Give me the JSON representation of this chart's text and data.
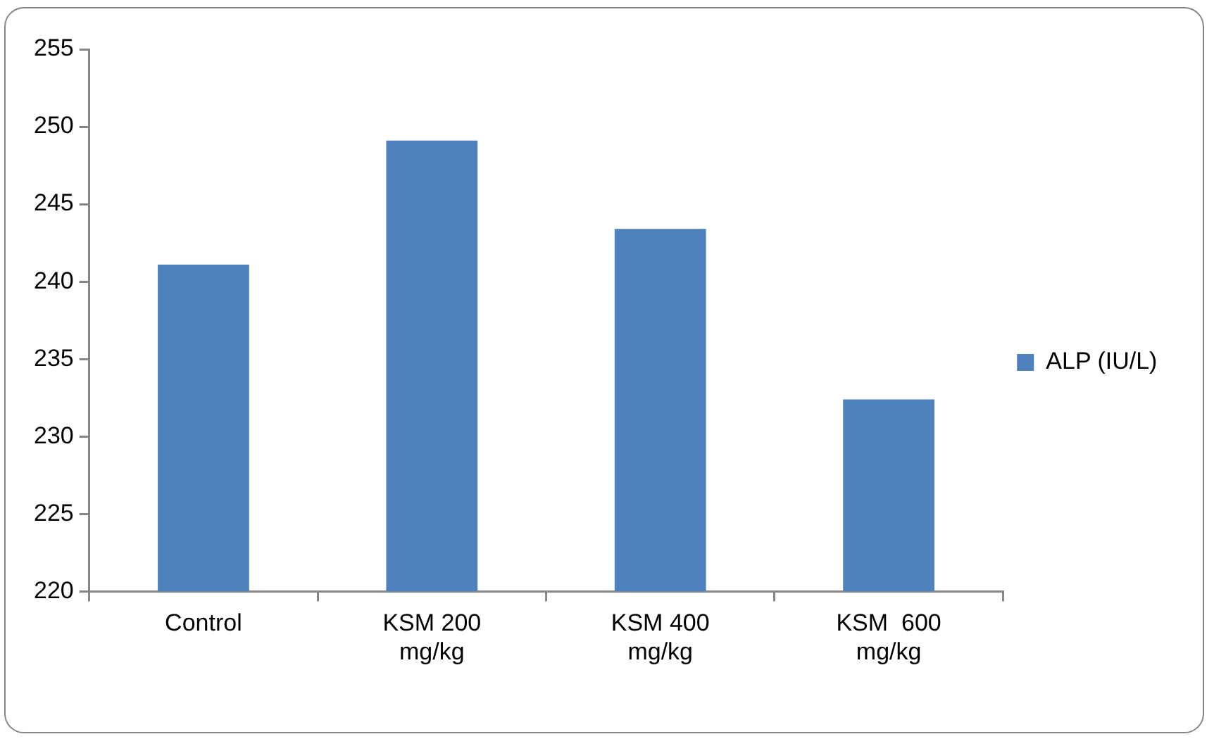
{
  "chart_data": {
    "type": "bar",
    "categories": [
      "Control",
      "KSM 200 mg/kg",
      "KSM 400 mg/kg",
      "KSM  600 mg/kg"
    ],
    "series": [
      {
        "name": "ALP (IU/L)",
        "color": "#4f81bd",
        "values": [
          241.1,
          249.1,
          243.4,
          232.4
        ]
      }
    ],
    "ylim": [
      220,
      255
    ],
    "yticks": [
      220,
      225,
      230,
      235,
      240,
      245,
      250,
      255
    ],
    "grid": false,
    "legend": "right"
  }
}
